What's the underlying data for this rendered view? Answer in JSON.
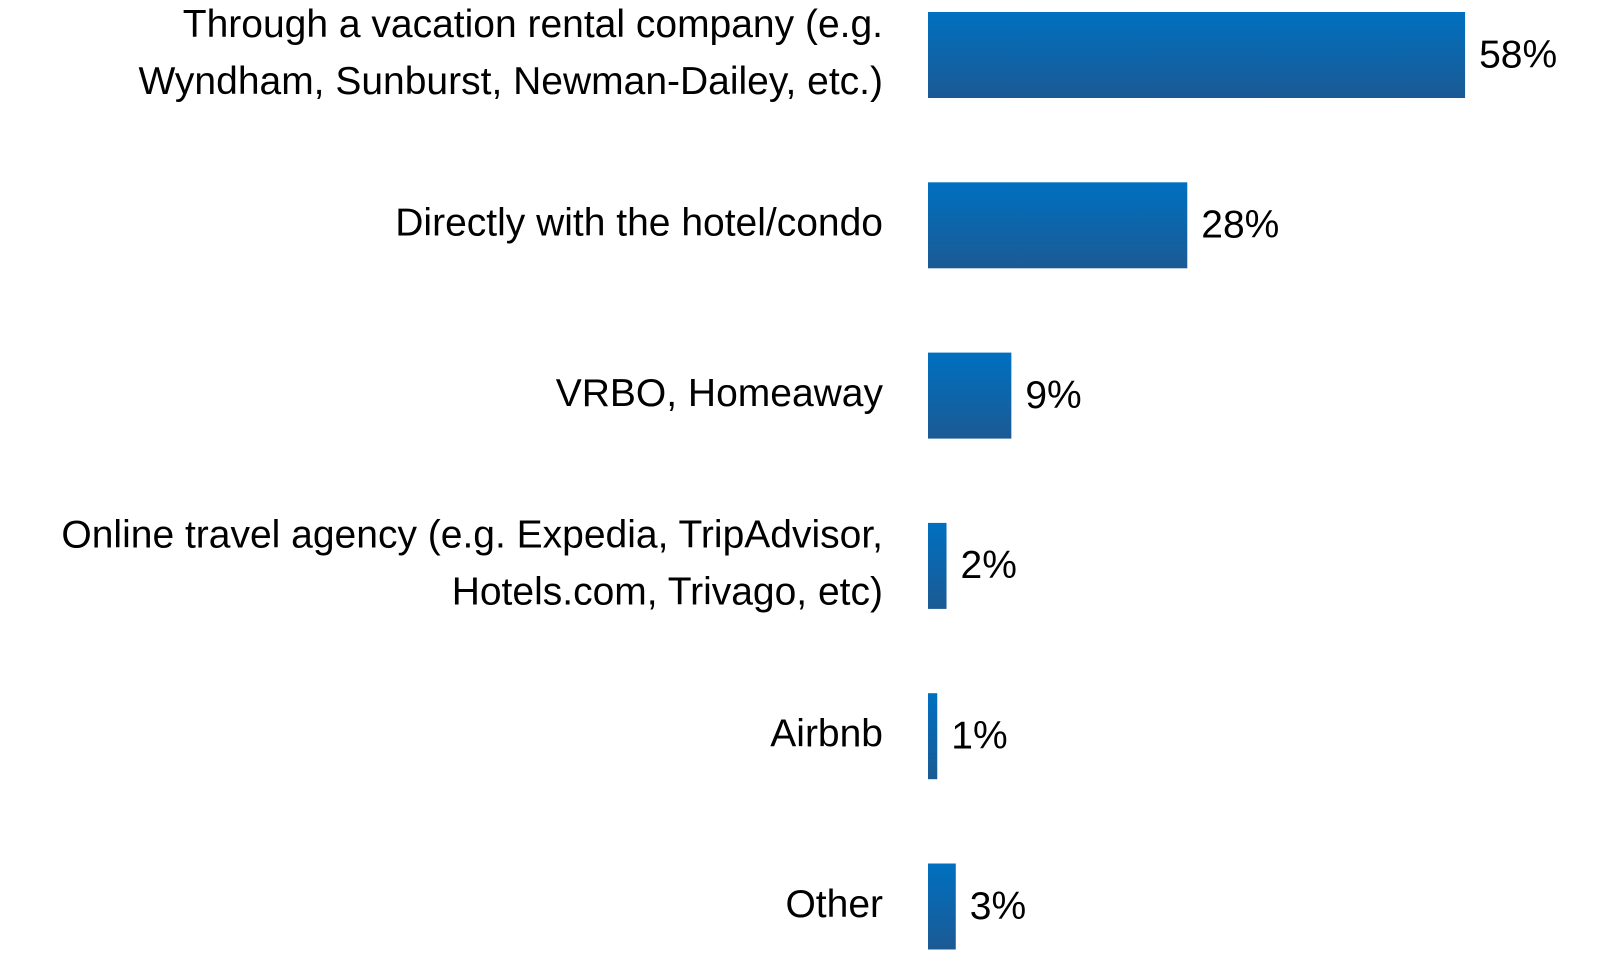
{
  "chart_data": {
    "type": "bar",
    "orientation": "horizontal",
    "categories": [
      [
        "Through a vacation rental company (e.g.",
        "Wyndham, Sunburst, Newman-Dailey, etc.)"
      ],
      [
        "Directly with the hotel/condo"
      ],
      [
        "VRBO, Homeaway"
      ],
      [
        "Online travel agency (e.g. Expedia, TripAdvisor,",
        "Hotels.com, Trivago, etc)"
      ],
      [
        "Airbnb"
      ],
      [
        "Other"
      ]
    ],
    "values": [
      58,
      28,
      9,
      2,
      1,
      3
    ],
    "value_labels": [
      "58%",
      "28%",
      "9%",
      "2%",
      "1%",
      "3%"
    ],
    "color": "#0070c0"
  }
}
